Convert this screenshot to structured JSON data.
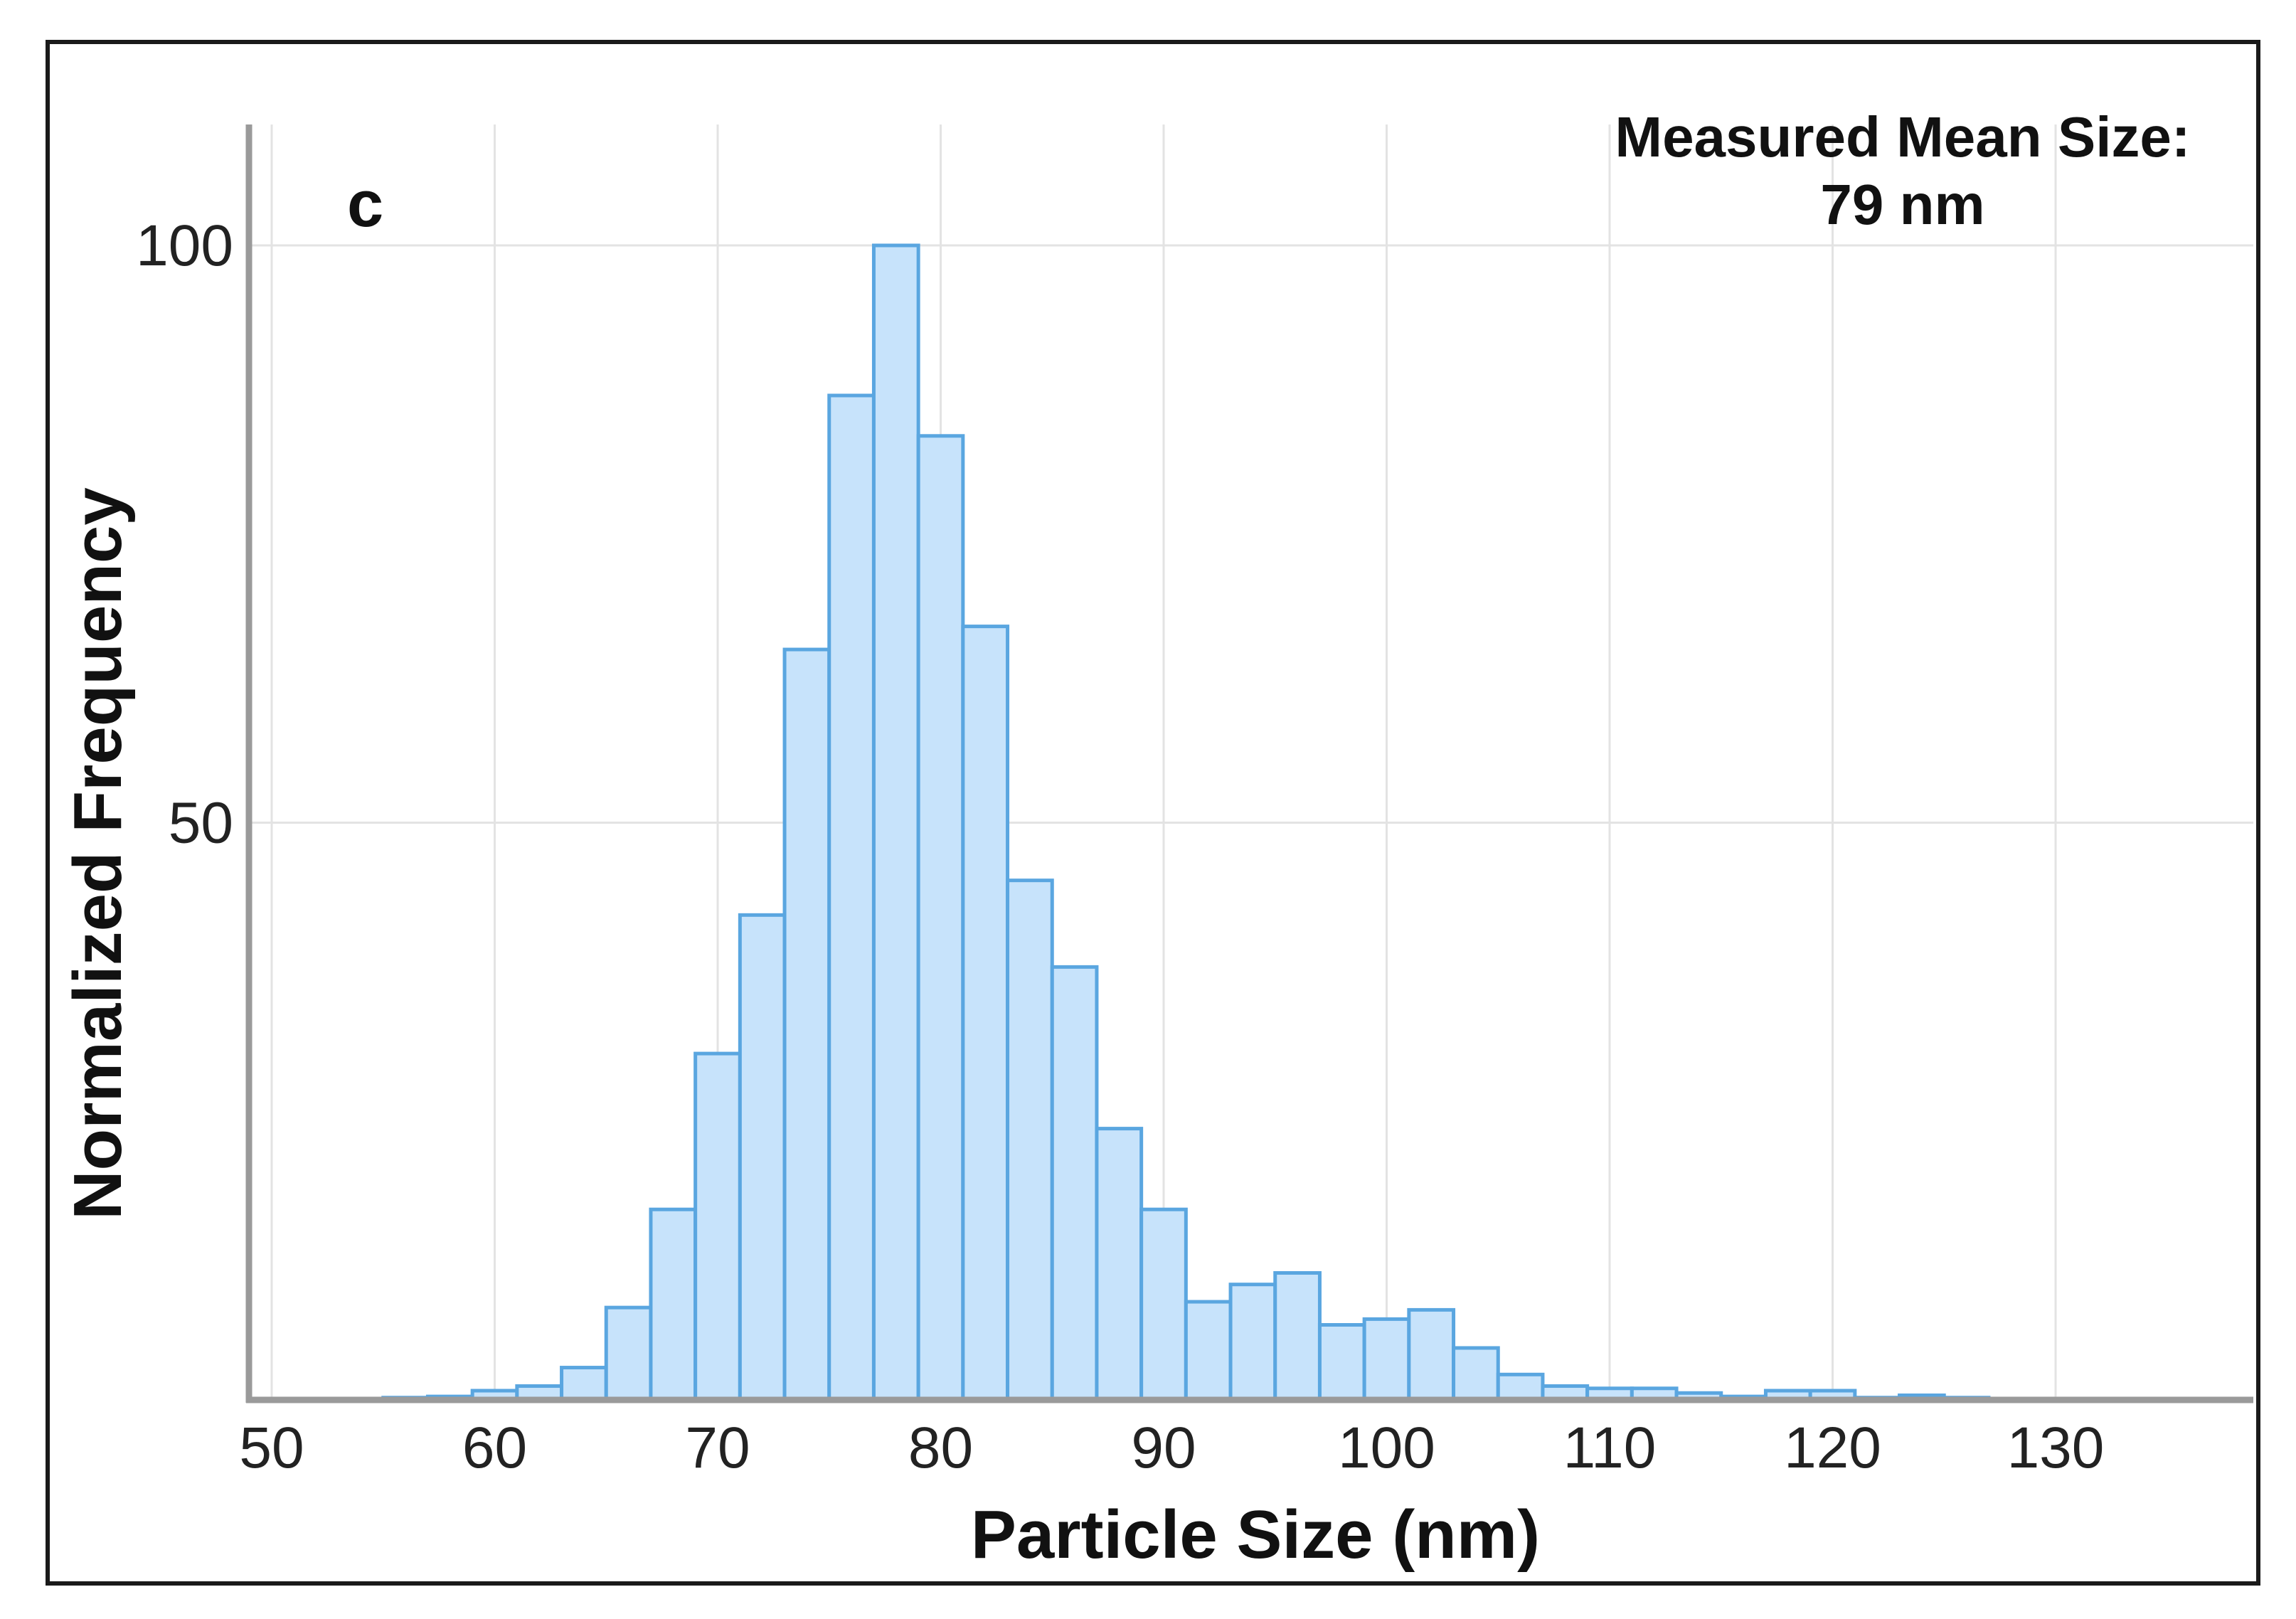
{
  "chart_data": {
    "type": "bar",
    "panel_label": "c",
    "title": "",
    "xlabel": "Particle Size (nm)",
    "ylabel": "Normalized Frequency",
    "xlim": [
      48,
      138
    ],
    "ylim": [
      0,
      110
    ],
    "xticks": [
      "50",
      "60",
      "70",
      "80",
      "90",
      "100",
      "110",
      "120",
      "130"
    ],
    "yticks": [
      "50",
      "100"
    ],
    "annotation_title": "Measured Mean Size:",
    "annotation_value": "79 nm",
    "grid": true,
    "bin_width": 2,
    "bins": [
      {
        "center": 56,
        "value": 0.2
      },
      {
        "center": 58,
        "value": 0.3
      },
      {
        "center": 60,
        "value": 0.8
      },
      {
        "center": 62,
        "value": 1.2
      },
      {
        "center": 64,
        "value": 2.8
      },
      {
        "center": 66,
        "value": 8
      },
      {
        "center": 68,
        "value": 16.5
      },
      {
        "center": 70,
        "value": 30
      },
      {
        "center": 72,
        "value": 42
      },
      {
        "center": 74,
        "value": 65
      },
      {
        "center": 76,
        "value": 87
      },
      {
        "center": 78,
        "value": 100
      },
      {
        "center": 80,
        "value": 83.5
      },
      {
        "center": 82,
        "value": 67
      },
      {
        "center": 84,
        "value": 45
      },
      {
        "center": 86,
        "value": 37.5
      },
      {
        "center": 88,
        "value": 23.5
      },
      {
        "center": 90,
        "value": 16.5
      },
      {
        "center": 92,
        "value": 8.5
      },
      {
        "center": 94,
        "value": 10
      },
      {
        "center": 96,
        "value": 11
      },
      {
        "center": 98,
        "value": 6.5
      },
      {
        "center": 100,
        "value": 7
      },
      {
        "center": 102,
        "value": 7.8
      },
      {
        "center": 104,
        "value": 4.5
      },
      {
        "center": 106,
        "value": 2.2
      },
      {
        "center": 108,
        "value": 1.2
      },
      {
        "center": 110,
        "value": 1
      },
      {
        "center": 112,
        "value": 1
      },
      {
        "center": 114,
        "value": 0.6
      },
      {
        "center": 116,
        "value": 0.3
      },
      {
        "center": 118,
        "value": 0.8
      },
      {
        "center": 120,
        "value": 0.8
      },
      {
        "center": 122,
        "value": 0.2
      },
      {
        "center": 124,
        "value": 0.4
      },
      {
        "center": 126,
        "value": 0.2
      }
    ]
  }
}
